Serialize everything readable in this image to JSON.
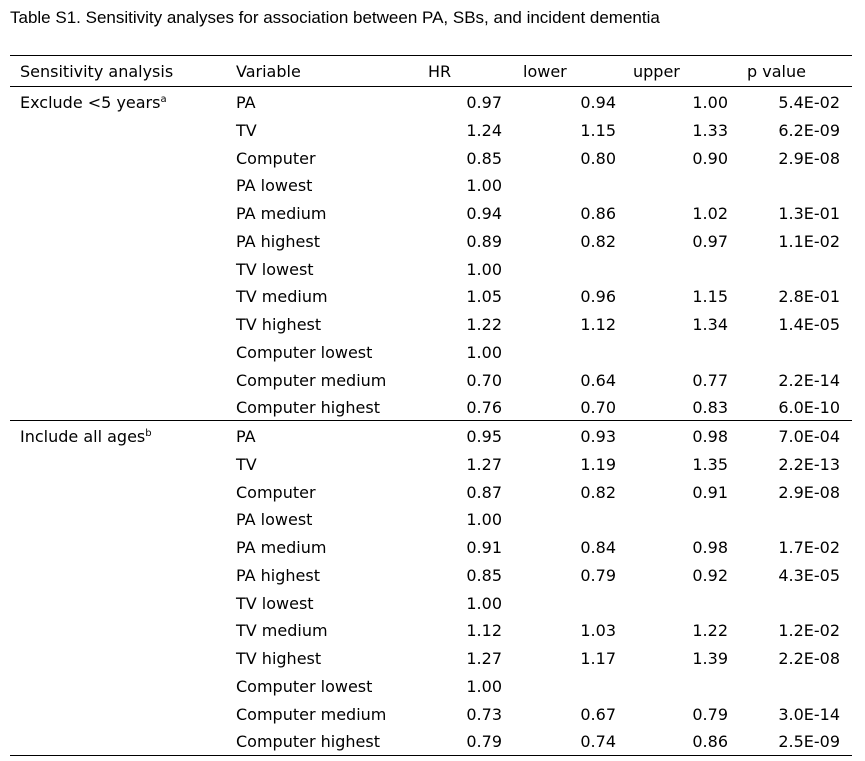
{
  "caption": "Table S1. Sensitivity analyses for association between PA, SBs, and incident dementia",
  "headers": {
    "sensitivity": "Sensitivity analysis",
    "variable": "Variable",
    "hr": "HR",
    "lower": "lower",
    "upper": "upper",
    "p": "p value"
  },
  "groups": [
    {
      "label": "Exclude <5 years",
      "sup": "a",
      "rows": [
        {
          "variable": "PA",
          "hr": "0.97",
          "lower": "0.94",
          "upper": "1.00",
          "p": "5.4E-02"
        },
        {
          "variable": "TV",
          "hr": "1.24",
          "lower": "1.15",
          "upper": "1.33",
          "p": "6.2E-09"
        },
        {
          "variable": "Computer",
          "hr": "0.85",
          "lower": "0.80",
          "upper": "0.90",
          "p": "2.9E-08"
        },
        {
          "variable": "PA lowest",
          "hr": "1.00",
          "lower": "",
          "upper": "",
          "p": ""
        },
        {
          "variable": "PA medium",
          "hr": "0.94",
          "lower": "0.86",
          "upper": "1.02",
          "p": "1.3E-01"
        },
        {
          "variable": "PA highest",
          "hr": "0.89",
          "lower": "0.82",
          "upper": "0.97",
          "p": "1.1E-02"
        },
        {
          "variable": "TV lowest",
          "hr": "1.00",
          "lower": "",
          "upper": "",
          "p": ""
        },
        {
          "variable": "TV medium",
          "hr": "1.05",
          "lower": "0.96",
          "upper": "1.15",
          "p": "2.8E-01"
        },
        {
          "variable": "TV highest",
          "hr": "1.22",
          "lower": "1.12",
          "upper": "1.34",
          "p": "1.4E-05"
        },
        {
          "variable": "Computer lowest",
          "hr": "1.00",
          "lower": "",
          "upper": "",
          "p": ""
        },
        {
          "variable": "Computer medium",
          "hr": "0.70",
          "lower": "0.64",
          "upper": "0.77",
          "p": "2.2E-14"
        },
        {
          "variable": "Computer highest",
          "hr": "0.76",
          "lower": "0.70",
          "upper": "0.83",
          "p": "6.0E-10"
        }
      ]
    },
    {
      "label": "Include all ages",
      "sup": "b",
      "rows": [
        {
          "variable": "PA",
          "hr": "0.95",
          "lower": "0.93",
          "upper": "0.98",
          "p": "7.0E-04"
        },
        {
          "variable": "TV",
          "hr": "1.27",
          "lower": "1.19",
          "upper": "1.35",
          "p": "2.2E-13"
        },
        {
          "variable": "Computer",
          "hr": "0.87",
          "lower": "0.82",
          "upper": "0.91",
          "p": "2.9E-08"
        },
        {
          "variable": "PA lowest",
          "hr": "1.00",
          "lower": "",
          "upper": "",
          "p": ""
        },
        {
          "variable": "PA medium",
          "hr": "0.91",
          "lower": "0.84",
          "upper": "0.98",
          "p": "1.7E-02"
        },
        {
          "variable": "PA highest",
          "hr": "0.85",
          "lower": "0.79",
          "upper": "0.92",
          "p": "4.3E-05"
        },
        {
          "variable": "TV lowest",
          "hr": "1.00",
          "lower": "",
          "upper": "",
          "p": ""
        },
        {
          "variable": "TV medium",
          "hr": "1.12",
          "lower": "1.03",
          "upper": "1.22",
          "p": "1.2E-02"
        },
        {
          "variable": "TV highest",
          "hr": "1.27",
          "lower": "1.17",
          "upper": "1.39",
          "p": "2.2E-08"
        },
        {
          "variable": "Computer lowest",
          "hr": "1.00",
          "lower": "",
          "upper": "",
          "p": ""
        },
        {
          "variable": "Computer medium",
          "hr": "0.73",
          "lower": "0.67",
          "upper": "0.79",
          "p": "3.0E-14"
        },
        {
          "variable": "Computer highest",
          "hr": "0.79",
          "lower": "0.74",
          "upper": "0.86",
          "p": "2.5E-09"
        }
      ]
    }
  ]
}
